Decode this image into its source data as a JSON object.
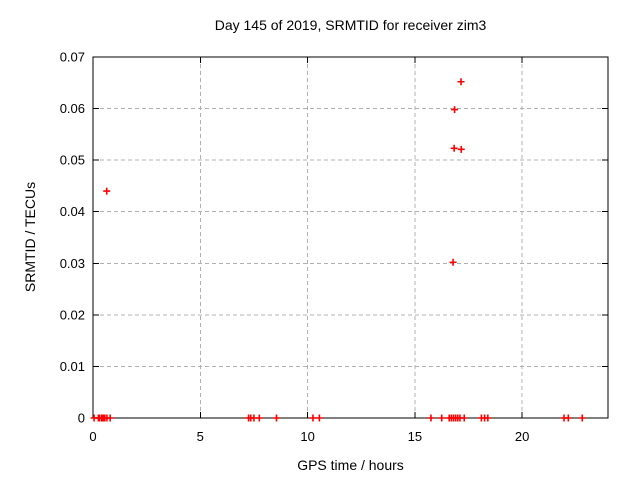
{
  "chart_data": {
    "type": "scatter",
    "title": "Day 145 of 2019, SRMTID for receiver zim3",
    "xlabel": "GPS time / hours",
    "ylabel": "SRMTID / TECUs",
    "xlim": [
      0,
      24
    ],
    "ylim": [
      0,
      0.07
    ],
    "xticks": [
      0,
      5,
      10,
      15,
      20
    ],
    "xtick_labels": [
      "0",
      "5",
      "10",
      "15",
      "20"
    ],
    "yticks": [
      0,
      0.01,
      0.02,
      0.03,
      0.04,
      0.05,
      0.06,
      0.07
    ],
    "ytick_labels": [
      "0",
      "0.01",
      "0.02",
      "0.03",
      "0.04",
      "0.05",
      "0.06",
      "0.07"
    ],
    "grid": true,
    "legend_position": "none",
    "colors": {
      "marker": "#ff0000",
      "grid": "#b0b0b0",
      "axis": "#000000",
      "background": "#ffffff"
    },
    "marker": {
      "shape": "plus",
      "size": 7
    },
    "series": [
      {
        "name": "SRMTID",
        "points": [
          [
            0.05,
            0
          ],
          [
            0.25,
            0
          ],
          [
            0.3,
            0
          ],
          [
            0.4,
            0
          ],
          [
            0.45,
            0
          ],
          [
            0.5,
            0
          ],
          [
            0.55,
            0
          ],
          [
            0.65,
            0
          ],
          [
            0.8,
            0
          ],
          [
            7.25,
            0
          ],
          [
            7.35,
            0
          ],
          [
            7.5,
            0
          ],
          [
            7.75,
            0
          ],
          [
            8.55,
            0
          ],
          [
            10.25,
            0
          ],
          [
            10.55,
            0
          ],
          [
            15.75,
            0
          ],
          [
            16.25,
            0
          ],
          [
            16.6,
            0
          ],
          [
            16.7,
            0
          ],
          [
            16.8,
            0
          ],
          [
            16.9,
            0
          ],
          [
            17.0,
            0
          ],
          [
            17.1,
            0
          ],
          [
            17.3,
            0
          ],
          [
            18.1,
            0
          ],
          [
            18.25,
            0
          ],
          [
            18.4,
            0
          ],
          [
            21.95,
            0
          ],
          [
            22.15,
            0
          ],
          [
            22.8,
            0
          ],
          [
            0.64,
            0.044
          ],
          [
            16.78,
            0.0302
          ],
          [
            16.83,
            0.0523
          ],
          [
            17.16,
            0.0521
          ],
          [
            16.85,
            0.0598
          ],
          [
            17.15,
            0.0652
          ]
        ]
      }
    ]
  }
}
